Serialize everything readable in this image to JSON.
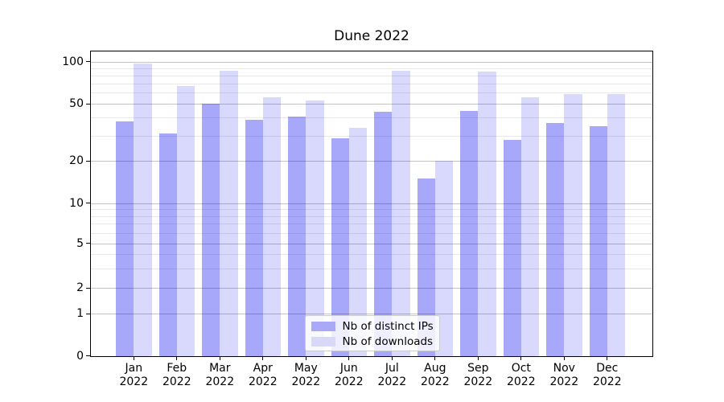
{
  "title": "Dune 2022",
  "chart_data": {
    "type": "bar",
    "title": "Dune 2022",
    "categories": [
      "Jan",
      "Feb",
      "Mar",
      "Apr",
      "May",
      "Jun",
      "Jul",
      "Aug",
      "Sep",
      "Oct",
      "Nov",
      "Dec"
    ],
    "year_label": "2022",
    "series": [
      {
        "name": "Nb of distinct IPs",
        "values": [
          38,
          31,
          50,
          39,
          41,
          29,
          44,
          15,
          45,
          28,
          37,
          35
        ],
        "color_rgba": "rgba(0,0,240,0.34)",
        "legend_color": "#a9a9f7"
      },
      {
        "name": "Nb of downloads",
        "values": [
          97,
          67,
          87,
          56,
          53,
          34,
          86,
          20,
          85,
          56,
          59,
          59
        ],
        "color_rgba": "rgba(0,0,240,0.15)",
        "legend_color": "#d9d9f7"
      }
    ],
    "yscale": "symlog",
    "ylim": [
      0,
      113
    ],
    "yticks": [
      0,
      1,
      2,
      5,
      10,
      20,
      50,
      100
    ],
    "yticks_minor": [
      3,
      4,
      6,
      7,
      8,
      9,
      30,
      40,
      60,
      70,
      80,
      90
    ],
    "grid": "both",
    "legend_location": "lower center"
  },
  "colors": {
    "background": "#ffffff",
    "bar_distinct_ips": "#a9a9f7",
    "bar_downloads": "#d9d9f7",
    "grid_major": "#c3c3c3",
    "grid_minor": "#e8e8e8",
    "spine": "#000000",
    "text": "#000000",
    "legend_border": "#cccccc"
  }
}
